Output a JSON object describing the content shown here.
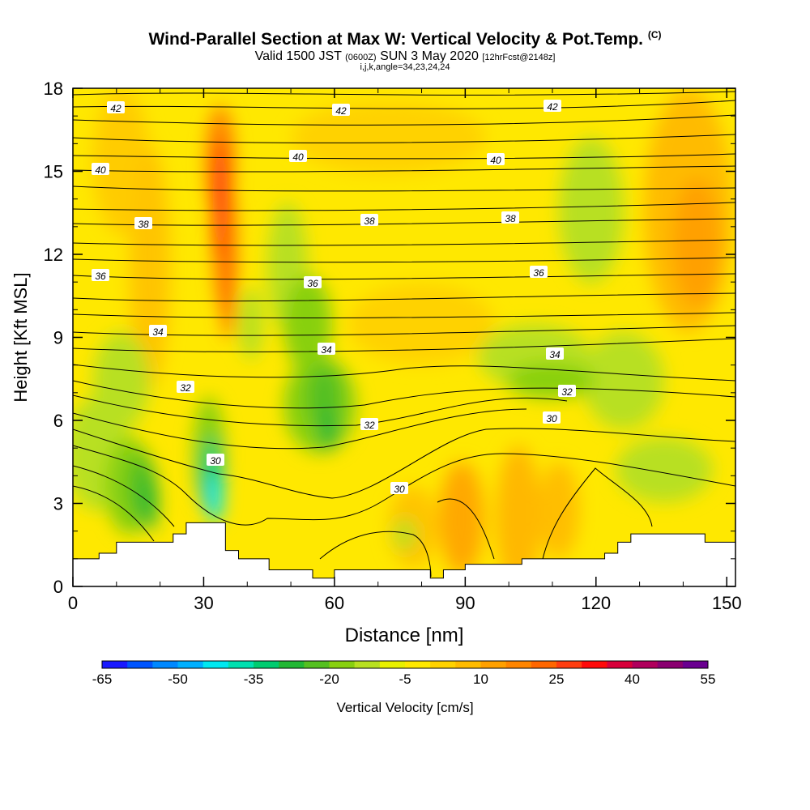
{
  "title": {
    "main": "Wind-Parallel Section at Max W: Vertical Velocity & Pot.Temp.",
    "mark": "(C)"
  },
  "subtitle": {
    "valid": "Valid 1500 JST",
    "utc": "(0600Z)",
    "date": "SUN 3 May 2020",
    "fcst": "[12hrFcst@2148z]"
  },
  "indices": "i,j,k,angle=34,23,24,24",
  "chart_data": {
    "type": "heatmap",
    "xlabel": "Distance [nm]",
    "ylabel": "Height [Kft MSL]",
    "xlim": [
      0,
      152
    ],
    "ylim": [
      0,
      18
    ],
    "x_ticks": [
      "0",
      "30",
      "60",
      "90",
      "120",
      "150"
    ],
    "y_ticks": [
      "0",
      "3",
      "6",
      "9",
      "12",
      "15",
      "18"
    ],
    "colorbar": {
      "label": "Vertical Velocity [cm/s]",
      "tick_labels": [
        "-65",
        "-50",
        "-35",
        "-20",
        "-5",
        "10",
        "25",
        "40",
        "55"
      ],
      "colors": [
        "#1a1aff",
        "#0055ff",
        "#0088ff",
        "#00b0ff",
        "#00e8f0",
        "#00e0b0",
        "#00cc70",
        "#22b834",
        "#55c020",
        "#88d010",
        "#b8e020",
        "#e8f000",
        "#ffe800",
        "#ffd200",
        "#ffbb00",
        "#ffa000",
        "#ff8500",
        "#ff6600",
        "#ff3d10",
        "#ff0a0a",
        "#d8003a",
        "#b0005c",
        "#8a0070",
        "#6a0090"
      ]
    },
    "theta_contour_labels": [
      "42",
      "42",
      "42",
      "40",
      "40",
      "40",
      "38",
      "38",
      "38",
      "36",
      "36",
      "36",
      "34",
      "34",
      "34",
      "32",
      "32",
      "32",
      "30",
      "30",
      "30"
    ],
    "vertical_velocity_features": [
      {
        "x_nm": 34,
        "z_kft": 14,
        "w_cms": 30
      },
      {
        "x_nm": 32,
        "z_kft": 3,
        "w_cms": -45
      },
      {
        "x_nm": 18,
        "z_kft": 3.5,
        "w_cms": -20
      },
      {
        "x_nm": 58,
        "z_kft": 6.5,
        "w_cms": -20
      },
      {
        "x_nm": 52,
        "z_kft": 10,
        "w_cms": -15
      },
      {
        "x_nm": 110,
        "z_kft": 7.5,
        "w_cms": -10
      },
      {
        "x_nm": 145,
        "z_kft": 13,
        "w_cms": 15
      },
      {
        "x_nm": 88,
        "z_kft": 2.5,
        "w_cms": 12
      }
    ],
    "terrain_kft": [
      [
        0,
        1
      ],
      [
        6,
        1
      ],
      [
        6,
        1.2
      ],
      [
        10,
        1.2
      ],
      [
        10,
        1.6
      ],
      [
        23,
        1.6
      ],
      [
        23,
        1.9
      ],
      [
        26,
        1.9
      ],
      [
        26,
        2.3
      ],
      [
        35,
        2.3
      ],
      [
        35,
        1.3
      ],
      [
        38,
        1.3
      ],
      [
        38,
        1
      ],
      [
        45,
        1
      ],
      [
        45,
        0.6
      ],
      [
        55,
        0.6
      ],
      [
        55,
        0.3
      ],
      [
        60,
        0.3
      ],
      [
        60,
        0.6
      ],
      [
        82,
        0.6
      ],
      [
        82,
        0.3
      ],
      [
        85,
        0.3
      ],
      [
        85,
        0.6
      ],
      [
        90,
        0.6
      ],
      [
        90,
        0.8
      ],
      [
        103,
        0.8
      ],
      [
        103,
        1
      ],
      [
        122,
        1
      ],
      [
        122,
        1.2
      ],
      [
        125,
        1.2
      ],
      [
        125,
        1.6
      ],
      [
        128,
        1.6
      ],
      [
        128,
        1.9
      ],
      [
        145,
        1.9
      ],
      [
        145,
        1.6
      ],
      [
        152,
        1.6
      ]
    ]
  }
}
